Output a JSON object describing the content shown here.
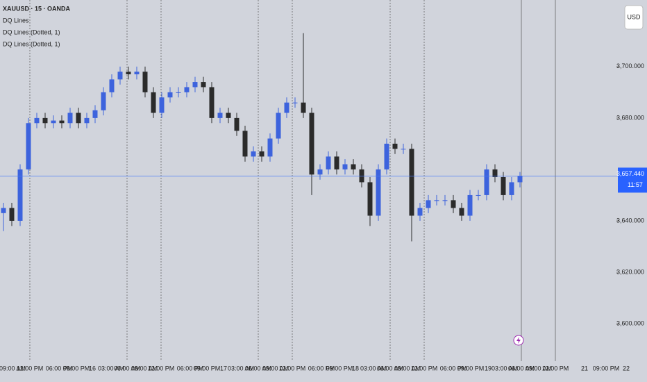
{
  "chart_data": {
    "type": "candlestick",
    "title": "XAUUSD · 15 · OANDA",
    "indicators": [
      "DQ Lines",
      "DQ Lines (Dotted, 1)",
      "DQ Lines (Dotted, 1)"
    ],
    "currency": "USD",
    "up_color": "#3d63dd",
    "down_color": "#2b2b2b",
    "open": [
      3643,
      3645,
      3640,
      3660,
      3678,
      3680,
      3678,
      3679,
      3678,
      3682,
      3678,
      3680,
      3683,
      3690,
      3695,
      3698,
      3697,
      3698,
      3690,
      3682,
      3688,
      3690,
      3690,
      3692,
      3694,
      3692,
      3680,
      3682,
      3680,
      3675,
      3665,
      3667,
      3665,
      3672,
      3682,
      3686,
      3686,
      3682,
      3658,
      3660,
      3665,
      3660,
      3662,
      3660,
      3655,
      3642,
      3660,
      3670,
      3668,
      3668,
      3642,
      3645,
      3648,
      3648,
      3648,
      3645,
      3642,
      3650,
      3650,
      3660,
      3657,
      3650,
      3655
    ],
    "high": [
      3647,
      3647,
      3662,
      3680,
      3682,
      3682,
      3681,
      3681,
      3684,
      3684,
      3682,
      3685,
      3692,
      3697,
      3700,
      3700,
      3700,
      3700,
      3692,
      3690,
      3692,
      3692,
      3694,
      3696,
      3696,
      3694,
      3684,
      3684,
      3682,
      3677,
      3669,
      3669,
      3674,
      3684,
      3688,
      3688,
      3713,
      3684,
      3662,
      3667,
      3667,
      3664,
      3664,
      3662,
      3657,
      3662,
      3672,
      3672,
      3670,
      3670,
      3647,
      3650,
      3650,
      3650,
      3650,
      3647,
      3652,
      3652,
      3662,
      3662,
      3659,
      3657,
      3659
    ],
    "low": [
      3636,
      3638,
      3638,
      3658,
      3676,
      3676,
      3676,
      3676,
      3676,
      3676,
      3676,
      3678,
      3681,
      3688,
      3693,
      3695,
      3695,
      3688,
      3680,
      3680,
      3686,
      3688,
      3688,
      3690,
      3690,
      3678,
      3678,
      3678,
      3673,
      3663,
      3663,
      3663,
      3663,
      3670,
      3680,
      3684,
      3680,
      3650,
      3656,
      3658,
      3658,
      3658,
      3658,
      3653,
      3638,
      3640,
      3658,
      3666,
      3666,
      3632,
      3640,
      3643,
      3646,
      3646,
      3643,
      3640,
      3640,
      3648,
      3648,
      3655,
      3648,
      3648,
      3653
    ],
    "close": [
      3645,
      3640,
      3660,
      3678,
      3680,
      3678,
      3679,
      3678,
      3682,
      3678,
      3680,
      3683,
      3690,
      3695,
      3698,
      3697,
      3698,
      3690,
      3682,
      3688,
      3690,
      3690,
      3692,
      3694,
      3692,
      3680,
      3682,
      3680,
      3675,
      3665,
      3667,
      3665,
      3672,
      3682,
      3686,
      3686,
      3682,
      3658,
      3660,
      3665,
      3660,
      3662,
      3660,
      3655,
      3642,
      3660,
      3670,
      3668,
      3668,
      3642,
      3645,
      3648,
      3648,
      3648,
      3645,
      3642,
      3650,
      3650,
      3660,
      3657,
      3650,
      3655,
      3657.44
    ],
    "last_price": {
      "value": 3657.44,
      "label": "3,657.440"
    },
    "countdown": "11:57",
    "ylim": [
      3585.4,
      3725.9
    ],
    "yticks": [
      {
        "value": 3600,
        "label": "3,600.000"
      },
      {
        "value": 3620,
        "label": "3,620.000"
      },
      {
        "value": 3640,
        "label": "3,640.000"
      },
      {
        "value": 3680,
        "label": "3,680.000"
      },
      {
        "value": 3700,
        "label": "3,700.000"
      }
    ],
    "time_labels": [
      "09:00 AM",
      "12:00 PM",
      "06:00 PM",
      "09:00 PM",
      "16",
      "03:00 AM",
      "06:00 AM",
      "09:00 AM",
      "12:00 PM",
      "06:00 PM",
      "09:00 PM",
      "17",
      "03:00 AM",
      "06:00 AM",
      "09:00 AM",
      "12:00 PM",
      "06:00 PM",
      "09:00 PM",
      "18",
      "03:00 AM",
      "06:00 AM",
      "09:00 AM",
      "12:00 PM",
      "06:00 PM",
      "09:00 PM",
      "19",
      "03:00 AM",
      "06:00 AM",
      "09:00 AM",
      "12:00 PM",
      "21",
      "09:00 PM",
      "22"
    ]
  }
}
